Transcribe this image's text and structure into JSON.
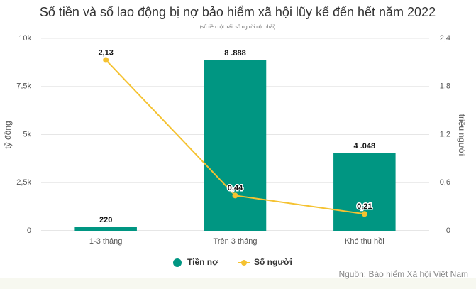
{
  "chart_data": {
    "type": "bar",
    "title": "Số tiền và số lao động bị nợ bảo hiểm xã hội lũy kế đến hết năm 2022",
    "subtitle": "(số tiền cột trái, số người cột phải)",
    "y_label": "tỷ đồng",
    "y2_label": "triệu người",
    "source": "Nguồn: Bảo hiểm Xã hội Việt Nam",
    "categories": [
      "1-3 tháng",
      "Trên 3 tháng",
      "Khó thu hồi"
    ],
    "series": [
      {
        "name": "Tiền nợ",
        "type": "bar",
        "color": "#009682",
        "values": [
          220,
          8888,
          4048
        ],
        "value_labels": [
          "220",
          "8 .888",
          "4 .048"
        ]
      },
      {
        "name": "Số người",
        "type": "line",
        "axis": "y2",
        "color": "#f5c231",
        "values": [
          2.13,
          0.44,
          0.21
        ],
        "value_labels": [
          "2,13",
          "0,44",
          "0,21"
        ]
      }
    ],
    "ylim": [
      0,
      10000
    ],
    "yticks": [
      0,
      {
        "value": 2500,
        "label": "2,5k"
      },
      {
        "value": 5000,
        "label": "5k"
      },
      {
        "value": 7500,
        "label": "7,5k"
      },
      {
        "value": 10000,
        "label": "10k"
      }
    ],
    "y2lim": [
      0,
      2.4
    ],
    "y2ticks": [
      0,
      {
        "value": 0.6,
        "label": "0,6"
      },
      {
        "value": 1.2,
        "label": "1,2"
      },
      {
        "value": 1.8,
        "label": "1,8"
      },
      {
        "value": 2.4,
        "label": "2,4"
      }
    ],
    "grid": true
  }
}
